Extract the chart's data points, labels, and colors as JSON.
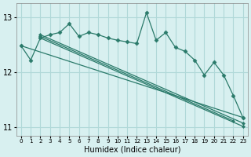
{
  "xlabel": "Humidex (Indice chaleur)",
  "bg_color": "#d8f0f0",
  "grid_color": "#b0d8d8",
  "line_color": "#2a7a6a",
  "xlim": [
    -0.5,
    23.5
  ],
  "ylim": [
    10.85,
    13.25
  ],
  "yticks": [
    11,
    12,
    13
  ],
  "xtick_labels": [
    "0",
    "1",
    "2",
    "3",
    "4",
    "5",
    "6",
    "7",
    "8",
    "9",
    "10",
    "11",
    "12",
    "13",
    "14",
    "15",
    "16",
    "17",
    "18",
    "19",
    "20",
    "21",
    "22",
    "23"
  ],
  "jagged_line": [
    12.48,
    12.22,
    12.62,
    12.68,
    12.72,
    12.88,
    12.65,
    12.72,
    12.68,
    12.62,
    12.58,
    12.55,
    12.52,
    13.08,
    12.58,
    12.72,
    12.45,
    12.38,
    12.22,
    11.95,
    12.18,
    11.95,
    11.58,
    11.18
  ],
  "straight_lines": [
    [
      [
        2,
        23
      ],
      [
        12.68,
        11.18
      ]
    ],
    [
      [
        2,
        23
      ],
      [
        12.68,
        11.08
      ]
    ],
    [
      [
        2,
        23
      ],
      [
        12.62,
        11.02
      ]
    ],
    [
      [
        0,
        23
      ],
      [
        12.48,
        11.12
      ]
    ]
  ]
}
